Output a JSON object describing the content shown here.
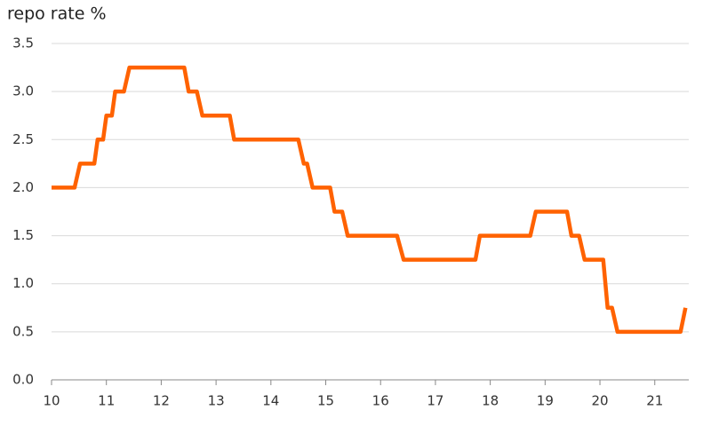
{
  "chart_data": {
    "type": "line",
    "title": "repo rate %",
    "x": [
      10,
      10.42,
      10.52,
      10.78,
      10.84,
      10.94,
      11.0,
      11.1,
      11.16,
      11.32,
      11.42,
      12.42,
      12.5,
      12.65,
      12.75,
      13.25,
      13.33,
      14.5,
      14.6,
      14.66,
      14.76,
      15.08,
      15.16,
      15.3,
      15.4,
      16.3,
      16.42,
      17.73,
      17.81,
      18.73,
      18.83,
      19.4,
      19.48,
      19.62,
      19.72,
      20.06,
      20.14,
      20.22,
      20.32,
      21.47,
      21.56
    ],
    "values": [
      2,
      2,
      2.25,
      2.25,
      2.5,
      2.5,
      2.75,
      2.75,
      3,
      3,
      3.25,
      3.25,
      3,
      3,
      2.75,
      2.75,
      2.5,
      2.5,
      2.25,
      2.25,
      2,
      2,
      1.75,
      1.75,
      1.5,
      1.5,
      1.25,
      1.25,
      1.5,
      1.5,
      1.75,
      1.75,
      1.5,
      1.5,
      1.25,
      1.25,
      0.75,
      0.75,
      0.5,
      0.5,
      0.75
    ],
    "color": "#ff6200",
    "xlim": [
      10,
      21.62
    ],
    "xticks": [
      10,
      11,
      12,
      13,
      14,
      15,
      16,
      17,
      18,
      19,
      20,
      21
    ],
    "ylim": [
      0,
      3.5
    ],
    "yticks": [
      {
        "value": 0,
        "label": "0.0"
      },
      {
        "value": 0.5,
        "label": "0.5"
      },
      {
        "value": 1,
        "label": "1.0"
      },
      {
        "value": 1.5,
        "label": "1.5"
      },
      {
        "value": 2,
        "label": "2.0"
      },
      {
        "value": 2.5,
        "label": "2.5"
      },
      {
        "value": 3,
        "label": "3.0"
      },
      {
        "value": 3.5,
        "label": "3.5"
      }
    ],
    "grid": true
  }
}
